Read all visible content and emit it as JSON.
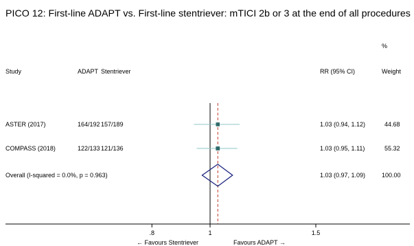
{
  "chart_data": {
    "type": "forest",
    "title": "PICO 12: First-line ADAPT vs. First-line stentriever: mTICI 2b or 3 at the end of all procedures",
    "headers": {
      "study": "Study",
      "group1": "ADAPT",
      "group2": "Stentriever",
      "effect": "RR (95% CI)",
      "weight_unit": "%",
      "weight": "Weight"
    },
    "studies": [
      {
        "label": "ASTER (2017)",
        "group1": "164/192",
        "group2": "157/189",
        "rr": 1.03,
        "lo": 0.94,
        "hi": 1.12,
        "effect_text": "1.03 (0.94, 1.12)",
        "weight_text": "44.68",
        "weight": 44.68
      },
      {
        "label": "COMPASS (2018)",
        "group1": "122/133",
        "group2": "121/136",
        "rr": 1.03,
        "lo": 0.95,
        "hi": 1.11,
        "effect_text": "1.03 (0.95, 1.11)",
        "weight_text": "55.32",
        "weight": 55.32
      }
    ],
    "overall": {
      "label": "Overall  (I-squared = 0.0%, p = 0.963)",
      "rr": 1.03,
      "lo": 0.97,
      "hi": 1.09,
      "effect_text": "1.03 (0.97, 1.09)",
      "weight_text": "100.00"
    },
    "xaxis": {
      "ticks": [
        {
          "value": 0.8,
          "label": ".8"
        },
        {
          "value": 1,
          "label": "1"
        },
        {
          "value": 1.5,
          "label": "1.5"
        }
      ],
      "null_value": 1,
      "scale": "log"
    },
    "favours_left": "← Favours Stentriever",
    "favours_right": "Favours ADAPT →",
    "colors": {
      "marker": "#2f6b6b",
      "ci_line": "#8fc4c4",
      "diamond": "#1a237e",
      "dashed_line": "#c0392b",
      "axis": "#000000"
    }
  }
}
